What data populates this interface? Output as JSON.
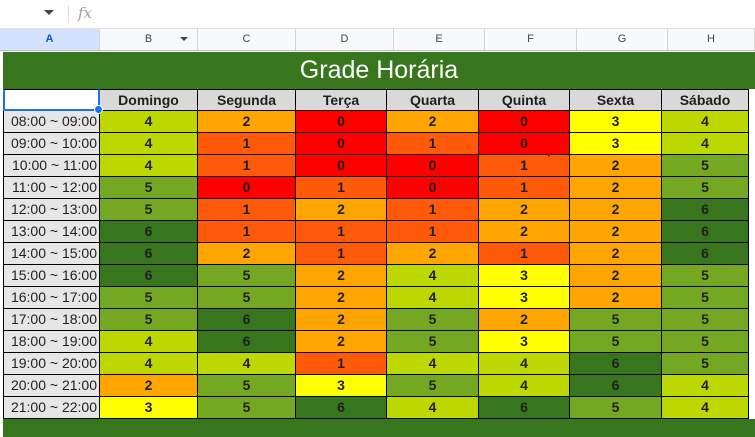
{
  "formula_bar": {
    "name_box": "",
    "fx_label": "fx"
  },
  "columns": [
    "A",
    "B",
    "C",
    "D",
    "E",
    "F",
    "G",
    "H"
  ],
  "title": "Grade Horária",
  "days": [
    "Domingo",
    "Segunda",
    "Terça",
    "Quarta",
    "Quinta",
    "Sexta",
    "Sábado"
  ],
  "rows": [
    {
      "time": "08:00 ~ 09:00",
      "values": [
        "4",
        "2",
        "0",
        "2",
        "0",
        "3",
        "4"
      ]
    },
    {
      "time": "09:00 ~ 10:00",
      "values": [
        "4",
        "1",
        "0",
        "1",
        "0",
        "3",
        "4"
      ]
    },
    {
      "time": "10:00 ~ 11:00",
      "values": [
        "4",
        "1",
        "0",
        "0",
        "1",
        "2",
        "5"
      ]
    },
    {
      "time": "11:00 ~ 12:00",
      "values": [
        "5",
        "0",
        "1",
        "0",
        "1",
        "2",
        "5"
      ]
    },
    {
      "time": "12:00 ~ 13:00",
      "values": [
        "5",
        "1",
        "2",
        "1",
        "2",
        "2",
        "6"
      ]
    },
    {
      "time": "13:00 ~ 14:00",
      "values": [
        "6",
        "1",
        "1",
        "1",
        "2",
        "2",
        "6"
      ]
    },
    {
      "time": "14:00 ~ 15:00",
      "values": [
        "6",
        "2",
        "1",
        "2",
        "1",
        "2",
        "6"
      ]
    },
    {
      "time": "15:00 ~ 16:00",
      "values": [
        "6",
        "5",
        "2",
        "4",
        "3",
        "2",
        "5"
      ]
    },
    {
      "time": "16:00 ~ 17:00",
      "values": [
        "5",
        "5",
        "2",
        "4",
        "3",
        "2",
        "5"
      ]
    },
    {
      "time": "17:00 ~ 18:00",
      "values": [
        "5",
        "6",
        "2",
        "5",
        "2",
        "5",
        "5"
      ]
    },
    {
      "time": "18:00 ~ 19:00",
      "values": [
        "4",
        "6",
        "2",
        "5",
        "3",
        "5",
        "5"
      ]
    },
    {
      "time": "19:00 ~ 20:00",
      "values": [
        "4",
        "4",
        "1",
        "4",
        "4",
        "6",
        "5"
      ]
    },
    {
      "time": "20:00 ~ 21:00",
      "values": [
        "2",
        "5",
        "3",
        "5",
        "4",
        "6",
        "4"
      ]
    },
    {
      "time": "21:00 ~ 22:00",
      "values": [
        "3",
        "5",
        "6",
        "4",
        "6",
        "5",
        "4"
      ]
    }
  ],
  "colors": {
    "0": "#ff0000",
    "1": "#ff5a0a",
    "2": "#ffa500",
    "3": "#ffff00",
    "4": "#bcd800",
    "5": "#74a822",
    "6": "#38761d"
  },
  "theme": {
    "header_band": "#38761d",
    "time_cell": "#e6e6e6",
    "day_header": "#d9d9d9",
    "selection": "#1a73e8"
  }
}
